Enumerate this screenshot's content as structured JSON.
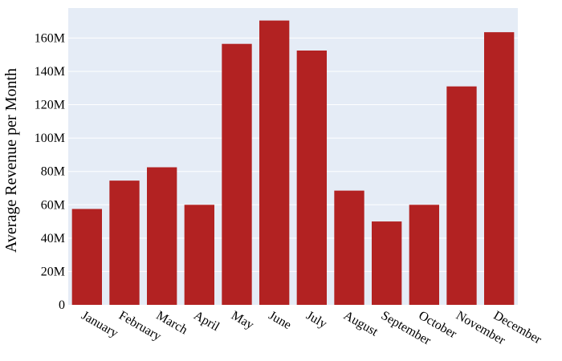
{
  "chart_data": {
    "type": "bar",
    "title": "",
    "xlabel": "",
    "ylabel": "Average Revenue per Month",
    "categories": [
      "January",
      "February",
      "March",
      "April",
      "May",
      "June",
      "July",
      "August",
      "September",
      "October",
      "November",
      "December"
    ],
    "values": [
      57.5,
      74.5,
      82.5,
      60,
      156.5,
      170.5,
      152.5,
      68.5,
      50,
      60,
      131,
      163.5
    ],
    "value_unit": "millions",
    "ylim": [
      0,
      178
    ],
    "yticks": [
      0,
      20,
      40,
      60,
      80,
      100,
      120,
      140,
      160
    ],
    "ytick_labels": [
      "0",
      "20M",
      "40M",
      "60M",
      "80M",
      "100M",
      "120M",
      "140M",
      "160M"
    ],
    "grid": true,
    "colors": {
      "bar": "#b22222",
      "plot_background": "#e5ecf6",
      "grid": "#ffffff"
    }
  }
}
